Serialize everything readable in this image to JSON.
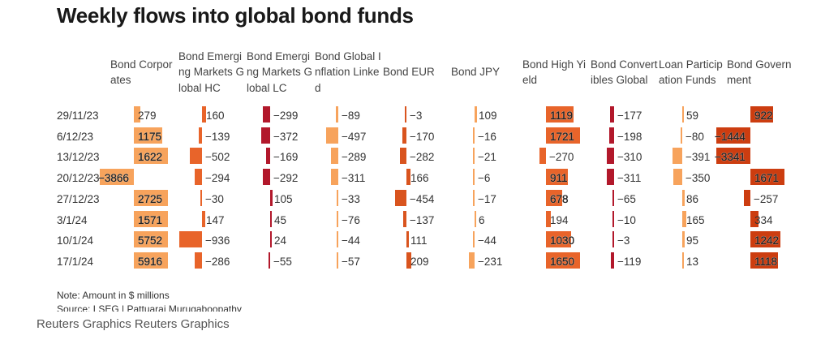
{
  "title": "Weekly flows into global bond funds",
  "note": "Note: Amount in $ millions",
  "source": "Source: LSEG | Pattuaraj Murugaboopathy",
  "credit": "Reuters Graphics Reuters Graphics",
  "chart_data": {
    "type": "table",
    "title": "Weekly flows into global bond funds",
    "unit": "$ millions",
    "rows": [
      "29/11/23",
      "6/12/23",
      "13/12/23",
      "20/12/23",
      "27/12/23",
      "3/1/24",
      "10/1/24",
      "17/1/24"
    ],
    "columns": [
      {
        "name": "Bond Corporates",
        "color": "#f7a35c",
        "values": [
          279,
          1175,
          1622,
          -3866,
          2725,
          1571,
          5752,
          5916
        ]
      },
      {
        "name": "Bond Emerging Markets Global HC",
        "color": "#e8642a",
        "values": [
          160,
          -139,
          -502,
          -294,
          -30,
          147,
          -936,
          -286
        ]
      },
      {
        "name": "Bond Emerging Markets Global LC",
        "color": "#b2182b",
        "values": [
          -299,
          -372,
          -169,
          -292,
          105,
          45,
          24,
          -55
        ]
      },
      {
        "name": "Bond Global Inflation Linked",
        "color": "#f7a35c",
        "values": [
          -89,
          -497,
          -289,
          -311,
          -33,
          -76,
          -44,
          -57
        ]
      },
      {
        "name": "Bond EUR",
        "color": "#d9541e",
        "values": [
          -3,
          -170,
          -282,
          166,
          -454,
          -137,
          111,
          209
        ]
      },
      {
        "name": "Bond JPY",
        "color": "#f7a35c",
        "values": [
          109,
          -16,
          -21,
          -6,
          -17,
          6,
          -44,
          -231
        ]
      },
      {
        "name": "Bond High Yield",
        "color": "#e8642a",
        "values": [
          1119,
          1721,
          -270,
          911,
          678,
          194,
          1030,
          1650
        ]
      },
      {
        "name": "Bond Convertibles Global",
        "color": "#b2182b",
        "values": [
          -177,
          -198,
          -310,
          -311,
          -65,
          -10,
          -3,
          -119
        ]
      },
      {
        "name": "Loan Participation Funds",
        "color": "#f7a35c",
        "values": [
          59,
          -80,
          -391,
          -350,
          86,
          165,
          95,
          13
        ]
      },
      {
        "name": "Bond Government",
        "color": "#cc3d10",
        "values": [
          922,
          -1444,
          -3341,
          1671,
          -257,
          334,
          1242,
          1118
        ]
      }
    ]
  }
}
